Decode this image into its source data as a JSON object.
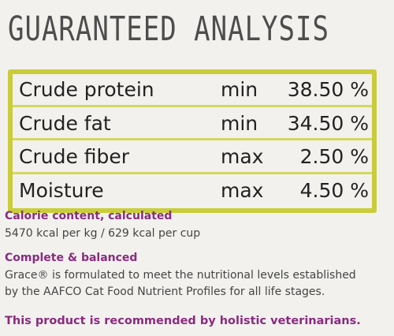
{
  "header": {
    "title": "GUARANTEED ANALYSIS"
  },
  "table": {
    "rows": [
      [
        "Crude protein",
        "min",
        "38.50 %"
      ],
      [
        "Crude fat",
        "min",
        "34.50 %"
      ],
      [
        "Crude fiber",
        "max",
        "2.50 %"
      ],
      [
        "Moisture",
        "max",
        "4.50 %"
      ]
    ]
  },
  "sections": [
    {
      "heading": "Calorie content, calculated",
      "lines": [
        "5470 kcal per kg / 629 kcal per cup"
      ]
    },
    {
      "heading": "Complete & balanced",
      "lines": [
        "Grace® is formulated to meet the nutritional levels established",
        "by the AAFCO Cat Food Nutrient Profiles for all life stages."
      ]
    }
  ],
  "footer": "This product is recommended by holistic veterinarians."
}
